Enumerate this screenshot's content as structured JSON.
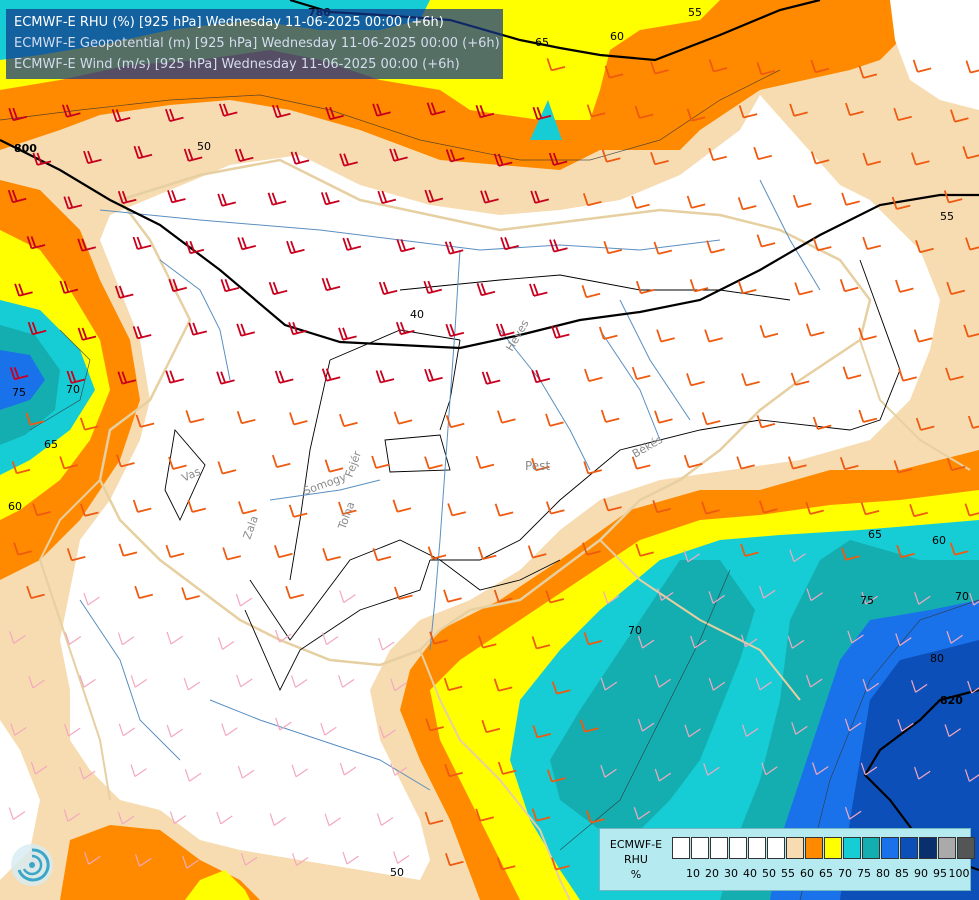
{
  "title": {
    "line1": "ECMWF-E RHU (%) [925 hPa] Wednesday 11-06-2025 00:00 (+6h)",
    "line2": "ECMWF-E Geopotential (m) [925 hPa] Wednesday 11-06-2025 00:00 (+6h)",
    "line3": "ECMWF-E Wind (m/s) [925 hPa] Wednesday 11-06-2025 00:00 (+6h)"
  },
  "legend": {
    "label_line1": "ECMWF-E",
    "label_line2": "RHU",
    "label_line3": "%",
    "levels": [
      {
        "label": "",
        "color": "#ffffff"
      },
      {
        "label": "10",
        "color": "#ffffff"
      },
      {
        "label": "20",
        "color": "#ffffff"
      },
      {
        "label": "30",
        "color": "#ffffff"
      },
      {
        "label": "40",
        "color": "#ffffff"
      },
      {
        "label": "50",
        "color": "#ffffff"
      },
      {
        "label": "55",
        "color": "#f7dcb2"
      },
      {
        "label": "60",
        "color": "#ff8a00"
      },
      {
        "label": "65",
        "color": "#ffff00"
      },
      {
        "label": "70",
        "color": "#16cdd5"
      },
      {
        "label": "75",
        "color": "#14aeb0"
      },
      {
        "label": "80",
        "color": "#1a72ea"
      },
      {
        "label": "85",
        "color": "#0c4fb8"
      },
      {
        "label": "90",
        "color": "#0a2f6e"
      },
      {
        "label": "95",
        "color": "#aaaaaa"
      },
      {
        "label": "100",
        "color": "#555555"
      }
    ]
  },
  "contour_labels": {
    "rhu": [
      "50",
      "40",
      "55",
      "65",
      "60",
      "75",
      "70",
      "65",
      "60",
      "65",
      "60",
      "70",
      "75",
      "80",
      "70",
      "50",
      "55"
    ],
    "geopotential": [
      "780",
      "800",
      "820"
    ]
  },
  "place_labels": [
    "Pest",
    "Békés",
    "Vas",
    "Zala",
    "Somogy",
    "Fejér",
    "Tolna",
    "Heves"
  ],
  "colors": {
    "barb_strong": "#c8001e",
    "barb_medium": "#ee5a10",
    "barb_light": "#f4a8c0",
    "country_border": "#e6cfa0",
    "county_border": "#000000",
    "river": "#5a8fc0"
  },
  "icons": {
    "logo": "ecmwf-logo-icon"
  }
}
